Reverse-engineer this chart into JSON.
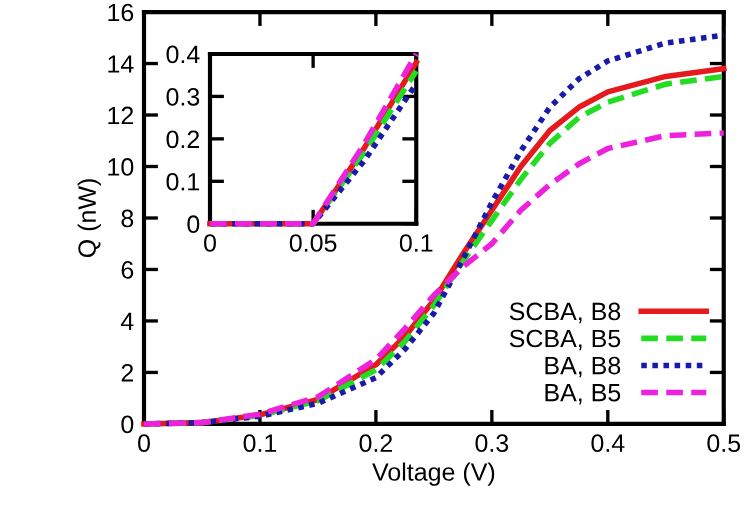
{
  "chart_data": [
    {
      "type": "line",
      "xlabel": "Voltage (V)",
      "ylabel": "Q (nW)",
      "x": [
        0,
        0.05,
        0.1,
        0.15,
        0.2,
        0.225,
        0.25,
        0.275,
        0.3,
        0.325,
        0.35,
        0.375,
        0.4,
        0.45,
        0.5
      ],
      "xlim": [
        0,
        0.5
      ],
      "ylim": [
        0,
        16
      ],
      "xticks": [
        0,
        0.1,
        0.2,
        0.3,
        0.4,
        0.5
      ],
      "yticks": [
        0,
        2,
        4,
        6,
        8,
        10,
        12,
        14,
        16
      ],
      "legend": "bottom right",
      "grid": false,
      "series": [
        {
          "name": "SCBA, B8",
          "color": "#e41a1c",
          "line_style": "solid",
          "values": [
            0,
            0.05,
            0.35,
            0.95,
            2.3,
            3.4,
            4.8,
            6.6,
            8.3,
            10.0,
            11.4,
            12.3,
            12.9,
            13.5,
            13.8
          ]
        },
        {
          "name": "SCBA, B5",
          "color": "#22dd22",
          "line_style": "dashed",
          "values": [
            0,
            0.05,
            0.33,
            0.9,
            2.1,
            3.2,
            4.6,
            6.3,
            7.9,
            9.5,
            10.9,
            11.9,
            12.5,
            13.2,
            13.5
          ]
        },
        {
          "name": "BA, B8",
          "color": "#1a1aaa",
          "line_style": "dotted",
          "values": [
            0,
            0.05,
            0.3,
            0.8,
            1.8,
            2.9,
            4.3,
            6.4,
            8.6,
            10.6,
            12.3,
            13.4,
            14.1,
            14.8,
            15.1
          ]
        },
        {
          "name": "BA, B5",
          "color": "#ee22dd",
          "line_style": "dashed",
          "values": [
            0,
            0.05,
            0.38,
            1.05,
            2.5,
            3.7,
            5.0,
            6.1,
            7.0,
            8.3,
            9.3,
            10.1,
            10.7,
            11.2,
            11.3
          ]
        }
      ]
    },
    {
      "type": "line",
      "x": [
        0,
        0.05,
        0.075,
        0.1
      ],
      "xlim": [
        0,
        0.1
      ],
      "ylim": [
        0,
        0.4
      ],
      "xticks": [
        0,
        0.05,
        0.1
      ],
      "yticks": [
        0,
        0.1,
        0.2,
        0.3,
        0.4
      ],
      "legend": false,
      "grid": false,
      "series": [
        {
          "color": "#e41a1c",
          "line_style": "solid",
          "values": [
            0,
            0,
            0.18,
            0.38
          ]
        },
        {
          "color": "#22dd22",
          "line_style": "dashed",
          "values": [
            0,
            0,
            0.17,
            0.36
          ]
        },
        {
          "color": "#1a1aaa",
          "line_style": "dotted",
          "values": [
            0,
            0,
            0.15,
            0.33
          ]
        },
        {
          "color": "#ee22dd",
          "line_style": "dashed",
          "values": [
            0,
            0,
            0.19,
            0.4
          ]
        }
      ]
    }
  ]
}
